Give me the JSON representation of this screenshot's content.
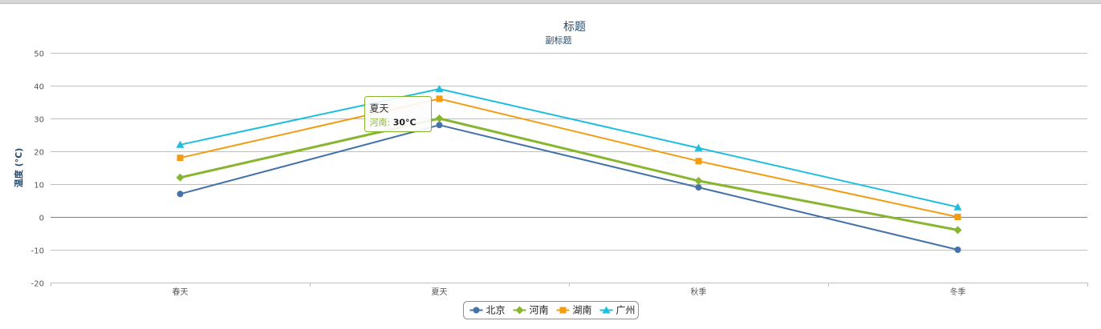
{
  "chart_data": {
    "type": "line",
    "title": "标题",
    "subtitle": "副标题",
    "ylabel": "温度 (°C)",
    "categories": [
      "春天",
      "夏天",
      "秋季",
      "冬季"
    ],
    "ylim": [
      -20,
      50
    ],
    "yticks": [
      -20,
      -10,
      0,
      10,
      20,
      30,
      40,
      50
    ],
    "grid": true,
    "legend_position": "bottom-center",
    "series": [
      {
        "name": "北京",
        "color": "#4572a7",
        "marker": "circle",
        "values": [
          7,
          28,
          9,
          -10
        ]
      },
      {
        "name": "河南",
        "color": "#89b631",
        "marker": "diamond",
        "values": [
          12,
          30,
          11,
          -4
        ]
      },
      {
        "name": "湖南",
        "color": "#f39c12",
        "marker": "square",
        "values": [
          18,
          36,
          17,
          0
        ]
      },
      {
        "name": "广州",
        "color": "#1fbde0",
        "marker": "triangle",
        "values": [
          22,
          39,
          21,
          3
        ]
      }
    ],
    "tooltip": {
      "category": "夏天",
      "series": "河南",
      "value_text": "30°C",
      "separator": ":"
    }
  }
}
